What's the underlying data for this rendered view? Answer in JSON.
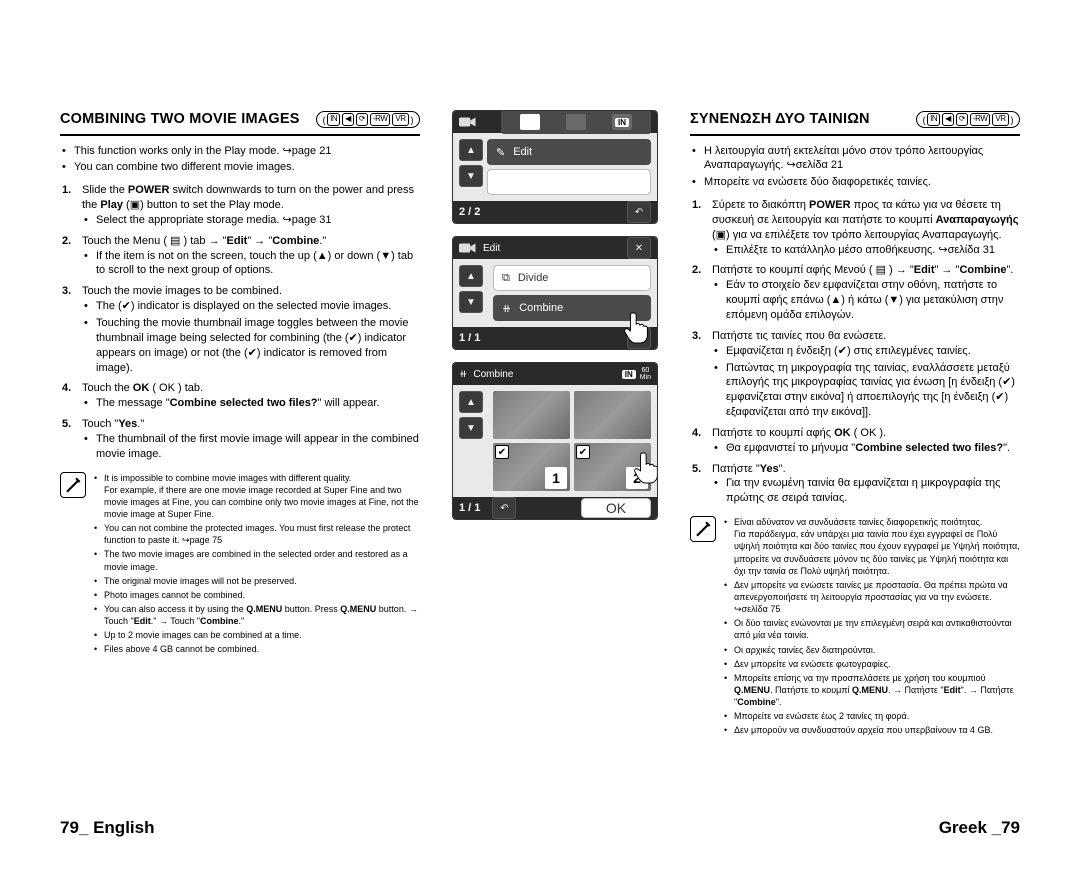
{
  "left": {
    "heading": "COMBINING TWO MOVIE IMAGES",
    "disc_labels": [
      "IN",
      "◀",
      "⟳",
      "-RW",
      "VR"
    ],
    "intro": [
      "This function works only in the Play mode. ↪page 21",
      "You can combine two different movie images."
    ],
    "steps": [
      {
        "main": "Slide the <b>POWER</b> switch downwards to turn on the power and press the <b>Play</b> (▣) button to set the Play mode.",
        "subs": [
          "Select the appropriate storage media. ↪page 31"
        ]
      },
      {
        "main": "Touch the Menu ( ▤ ) tab → \"<b>Edit</b>\" → \"<b>Combine</b>.\"",
        "subs": [
          "If the item is not on the screen, touch the up (▲) or down (▼) tab to scroll to the next group of options."
        ]
      },
      {
        "main": "Touch the movie images to be combined.",
        "subs": [
          "The (✔) indicator is displayed on the selected movie images.",
          "Touching the movie thumbnail image toggles between the movie thumbnail image being selected for combining (the (✔) indicator appears on image) or not (the (✔) indicator is removed from image)."
        ]
      },
      {
        "main": "Touch the <b>OK</b> ( OK ) tab.",
        "subs": [
          "The message \"<b>Combine selected two files?</b>\" will appear."
        ]
      },
      {
        "main": "Touch \"<b>Yes</b>.\"",
        "subs": [
          "The thumbnail of the first movie image will appear in the combined movie image."
        ]
      }
    ],
    "notes": [
      "It is impossible to combine movie images with different quality.\nFor example, if there are one movie image recorded at Super Fine and two movie images at Fine, you can combine only two movie images at Fine, not the movie image at Super Fine.",
      "You can not combine the protected images. You must first release the protect function to paste it. ↪page 75",
      "The two movie images are combined in the selected order and restored as a movie image.",
      "The original movie images will not be preserved.",
      "Photo images cannot be combined.",
      "You can also access it by using the <b>Q.MENU</b> button. Press <b>Q.MENU</b> button. → Touch \"<b>Edit</b>.\" → Touch \"<b>Combine</b>.\"",
      "Up to 2 movie images can be combined at a time.",
      "Files above 4 GB cannot be combined."
    ]
  },
  "right": {
    "heading": "ΣΥΝΕΝΩΣΗ ΔΥΟ ΤΑΙΝΙΩΝ",
    "disc_labels": [
      "IN",
      "◀",
      "⟳",
      "-RW",
      "VR"
    ],
    "intro": [
      "Η λειτουργία αυτή εκτελείται μόνο στον τρόπο λειτουργίας Αναπαραγωγής. ↪σελίδα 21",
      "Μπορείτε να ενώσετε δύο διαφορετικές ταινίες."
    ],
    "steps": [
      {
        "main": "Σύρετε το διακόπτη <b>POWER</b> προς τα κάτω για να θέσετε τη συσκευή σε λειτουργία και πατήστε το κουμπί <b>Αναπαραγωγής</b> (▣) για να επιλέξετε τον τρόπο λειτουργίας Αναπαραγωγής.",
        "subs": [
          "Επιλέξτε το κατάλληλο μέσο αποθήκευσης. ↪σελίδα 31"
        ]
      },
      {
        "main": "Πατήστε το κουμπί αφής Μενού ( ▤ ) → \"<b>Edit</b>\" → \"<b>Combine</b>\".",
        "subs": [
          "Εάν το στοιχείο δεν εμφανίζεται στην οθόνη, πατήστε το κουμπί αφής επάνω (▲) ή κάτω (▼) για μετακύλιση στην επόμενη ομάδα επιλογών."
        ]
      },
      {
        "main": "Πατήστε τις ταινίες που θα ενώσετε.",
        "subs": [
          "Εμφανίζεται η ένδειξη (✔) στις επιλεγμένες ταινίες.",
          "Πατώντας τη μικρογραφία της ταινίας, εναλλάσσετε μεταξύ επιλογής της μικρογραφίας ταινίας για ένωση [η ένδειξη (✔) εμφανίζεται στην εικόνα] ή αποεπιλογής της [η ένδειξη (✔) εξαφανίζεται από την εικόνα]]."
        ]
      },
      {
        "main": "Πατήστε το κουμπί αφής <b>OK</b> ( OK ).",
        "subs": [
          "Θα εμφανιστεί το μήνυμα \"<b>Combine selected two files?</b>\"."
        ]
      },
      {
        "main": "Πατήστε \"<b>Yes</b>\".",
        "subs": [
          "Για την ενωμένη ταινία θα εμφανίζεται η μικρογραφία της πρώτης σε σειρά ταινίας."
        ]
      }
    ],
    "notes": [
      "Είναι αδύνατον να συνδυάσετε ταινίες διαφορετικής ποιότητας.\nΓια παράδειγμα, εάν υπάρχει μια ταινία που έχει εγγραφεί σε Πολύ υψηλή ποιότητα και δύο ταινίες που έχουν εγγραφεί με Υψηλή ποιότητα, μπορείτε να συνδυάσετε μόνον τις δύο ταινίες με Υψηλή ποιότητα και όχι την ταινία σε Πολύ υψηλή ποιότητα.",
      "Δεν μπορείτε να ενώσετε ταινίες με προστασία. Θα πρέπει πρώτα να απενεργοποιήσετε τη λειτουργία προστασίας για να την ενώσετε. ↪σελίδα 75",
      "Οι δύο ταινίες ενώνονται με την επιλεγμένη σειρά και αντικαθιστούνται από μία νέα ταινία.",
      "Οι αρχικές ταινίες δεν διατηρούνται.",
      "Δεν μπορείτε να ενώσετε φωτογραφίες.",
      "Μπορείτε επίσης να την προσπελάσετε με χρήση του κουμπιού <b>Q.MENU</b>. Πατήστε το κουμπί <b>Q.MENU</b>. → Πατήστε \"<b>Edit</b>\". → Πατήστε \"<b>Combine</b>\".",
      "Μπορείτε να ενώσετε έως 2 ταινίες τη φορά.",
      "Δεν μπορούν να συνδυαστούν αρχεία που υπερβαίνουν τα 4 GB."
    ]
  },
  "screens": {
    "s1": {
      "edit": "Edit",
      "page": "2 / 2",
      "in": "IN"
    },
    "s2": {
      "title": "Edit",
      "divide": "Divide",
      "combine": "Combine",
      "page": "1 / 1"
    },
    "s3": {
      "title": "Combine",
      "page": "1 / 1",
      "ok": "OK",
      "in": "IN",
      "min": "60\nMin",
      "badges": [
        "1",
        "2"
      ]
    }
  },
  "footer": {
    "left": "79_ English",
    "right": "Greek _79"
  }
}
